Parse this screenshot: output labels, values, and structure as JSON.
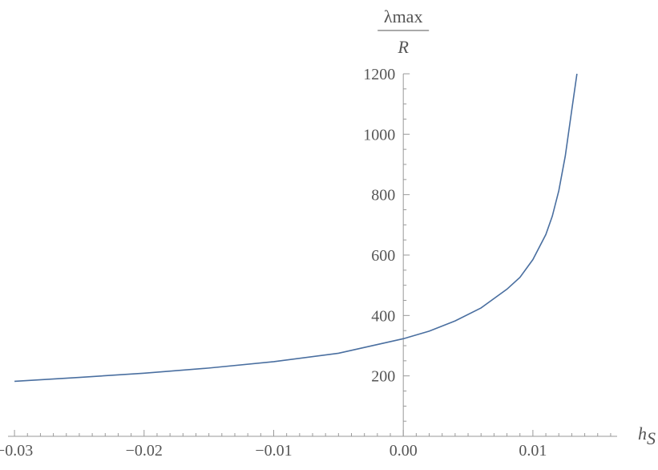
{
  "chart_data": {
    "type": "line",
    "title": "",
    "xlabel": {
      "main": "h",
      "sub": "S"
    },
    "ylabel": {
      "numerator": "λmax",
      "denominator": "R"
    },
    "xlim": [
      -0.0305,
      0.0165
    ],
    "ylim": [
      0,
      1200
    ],
    "x_ticks": [
      -0.03,
      -0.02,
      -0.01,
      0.0,
      0.01
    ],
    "x_tick_labels": [
      "−0.03",
      "−0.02",
      "−0.01",
      "0.00",
      "0.01"
    ],
    "y_ticks": [
      200,
      400,
      600,
      800,
      1000,
      1200
    ],
    "y_tick_labels": [
      "200",
      "400",
      "600",
      "800",
      "1000",
      "1200"
    ],
    "grid": false,
    "series": [
      {
        "color": "#4a6fa0",
        "x": [
          -0.03,
          -0.025,
          -0.02,
          -0.015,
          -0.01,
          -0.005,
          0.0,
          0.002,
          0.004,
          0.006,
          0.008,
          0.009,
          0.01,
          0.011,
          0.0115,
          0.012,
          0.0125,
          0.013,
          0.0134
        ],
        "y": [
          182,
          195,
          209,
          226,
          247,
          275,
          323,
          348,
          382,
          425,
          487,
          526,
          585,
          668,
          729,
          813,
          928,
          1080,
          1200
        ]
      }
    ]
  }
}
